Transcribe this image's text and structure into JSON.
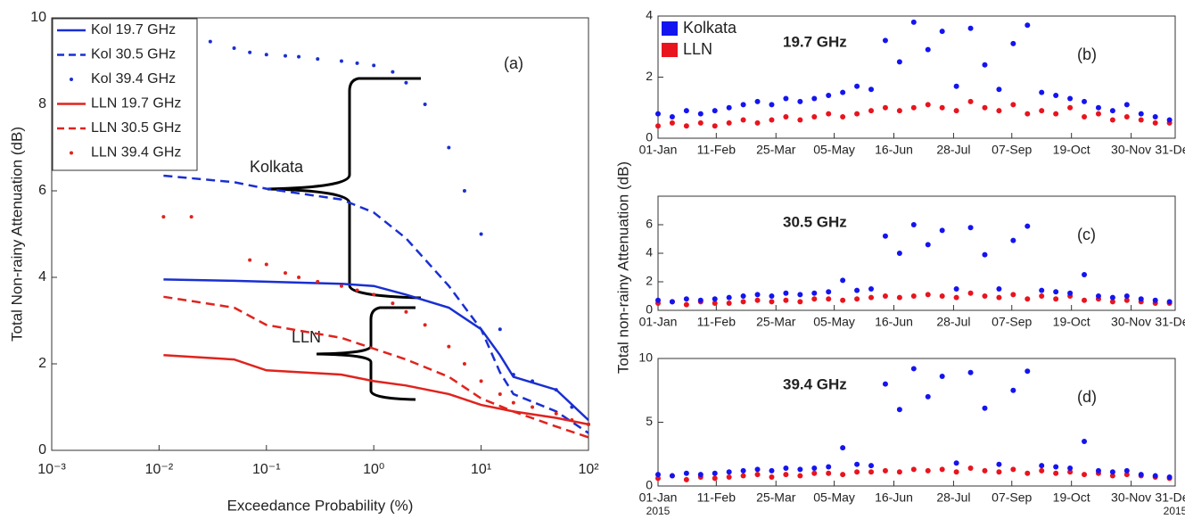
{
  "chart_data": [
    {
      "type": "line",
      "panel_label": "(a)",
      "xlabel": "Exceedance Probability (%)",
      "ylabel": "Total Non-rainy Attenuation (dB)",
      "xscale": "log",
      "xlim": [
        0.001,
        100
      ],
      "xticks": [
        {
          "value": 0.001,
          "label": "10⁻³"
        },
        {
          "value": 0.01,
          "label": "10⁻²"
        },
        {
          "value": 0.1,
          "label": "10⁻¹"
        },
        {
          "value": 1,
          "label": "10⁰"
        },
        {
          "value": 10,
          "label": "10¹"
        },
        {
          "value": 100,
          "label": "10²"
        }
      ],
      "ylim": [
        0,
        10
      ],
      "yticks": [
        0,
        2,
        4,
        6,
        8,
        10
      ],
      "legend": "upper left",
      "annotations": [
        "Kolkata",
        "LLN"
      ],
      "series": [
        {
          "name": "Kol 19.7 GHz",
          "color": "#1a2fd1",
          "style": "solid",
          "x": [
            0.011,
            0.05,
            0.1,
            0.5,
            1,
            2,
            5,
            10,
            15,
            20,
            50,
            100
          ],
          "values": [
            3.95,
            3.92,
            3.9,
            3.85,
            3.8,
            3.6,
            3.3,
            2.8,
            2.2,
            1.7,
            1.4,
            0.7
          ]
        },
        {
          "name": "Kol 30.5 GHz",
          "color": "#1a2fd1",
          "style": "dashed",
          "x": [
            0.011,
            0.05,
            0.1,
            0.5,
            1,
            2,
            5,
            10,
            15,
            20,
            50,
            100
          ],
          "values": [
            6.35,
            6.2,
            6.05,
            5.8,
            5.5,
            4.9,
            3.8,
            2.8,
            1.8,
            1.3,
            0.9,
            0.4
          ]
        },
        {
          "name": "Kol 39.4 GHz",
          "color": "#1a2fd1",
          "style": "dotted",
          "x": [
            0.02,
            0.03,
            0.05,
            0.07,
            0.1,
            0.15,
            0.2,
            0.3,
            0.5,
            0.7,
            1,
            1.5,
            2,
            3,
            5,
            7,
            10,
            15,
            20,
            30,
            50,
            70,
            100
          ],
          "values": [
            9.6,
            9.45,
            9.3,
            9.2,
            9.15,
            9.12,
            9.1,
            9.05,
            9.0,
            8.95,
            8.9,
            8.75,
            8.5,
            8.0,
            7.0,
            6.0,
            5.0,
            2.8,
            1.75,
            1.6,
            1.4,
            1.0,
            0.6
          ]
        },
        {
          "name": "LLN 19.7 GHz",
          "color": "#e0231d",
          "style": "solid",
          "x": [
            0.011,
            0.05,
            0.1,
            0.5,
            1,
            2,
            5,
            10,
            20,
            50,
            100
          ],
          "values": [
            2.2,
            2.1,
            1.85,
            1.75,
            1.6,
            1.5,
            1.3,
            1.05,
            0.9,
            0.75,
            0.6
          ]
        },
        {
          "name": "LLN 30.5 GHz",
          "color": "#e0231d",
          "style": "dashed",
          "x": [
            0.011,
            0.05,
            0.1,
            0.5,
            1,
            2,
            5,
            10,
            20,
            50,
            100
          ],
          "values": [
            3.55,
            3.3,
            2.9,
            2.6,
            2.35,
            2.1,
            1.7,
            1.2,
            0.9,
            0.55,
            0.3
          ]
        },
        {
          "name": "LLN 39.4 GHz",
          "color": "#e0231d",
          "style": "dotted",
          "x": [
            0.011,
            0.02,
            0.07,
            0.1,
            0.15,
            0.2,
            0.3,
            0.5,
            0.7,
            1,
            1.5,
            2,
            3,
            5,
            7,
            10,
            15,
            20,
            30,
            50,
            70,
            100
          ],
          "values": [
            5.4,
            5.4,
            4.4,
            4.3,
            4.1,
            4.0,
            3.9,
            3.8,
            3.7,
            3.6,
            3.4,
            3.2,
            2.9,
            2.4,
            2.0,
            1.6,
            1.3,
            1.1,
            1.0,
            0.85,
            0.7,
            0.6
          ]
        }
      ]
    },
    {
      "type": "scatter",
      "panel_label": "(b)",
      "subtitle": "19.7 GHz",
      "legend": "upper left",
      "xlim": [
        "2015-01-01",
        "2015-12-31"
      ],
      "xticks": [
        {
          "value": "2015-01-01",
          "label": "01-Jan"
        },
        {
          "value": "2015-02-11",
          "label": "11-Feb"
        },
        {
          "value": "2015-03-25",
          "label": "25-Mar"
        },
        {
          "value": "2015-05-05",
          "label": "05-May"
        },
        {
          "value": "2015-06-16",
          "label": "16-Jun"
        },
        {
          "value": "2015-07-28",
          "label": "28-Jul"
        },
        {
          "value": "2015-09-07",
          "label": "07-Sep"
        },
        {
          "value": "2015-10-19",
          "label": "19-Oct"
        },
        {
          "value": "2015-11-30",
          "label": "30-Nov"
        },
        {
          "value": "2015-12-31",
          "label": "31-Dec"
        }
      ],
      "ylim": [
        0,
        4
      ],
      "yticks": [
        0,
        2,
        4
      ],
      "x": [
        "2015-01-01",
        "2015-01-11",
        "2015-01-21",
        "2015-01-31",
        "2015-02-10",
        "2015-02-20",
        "2015-03-02",
        "2015-03-12",
        "2015-03-22",
        "2015-04-01",
        "2015-04-11",
        "2015-04-21",
        "2015-05-01",
        "2015-05-11",
        "2015-05-21",
        "2015-05-31",
        "2015-06-10",
        "2015-06-20",
        "2015-06-30",
        "2015-07-10",
        "2015-07-20",
        "2015-07-30",
        "2015-08-09",
        "2015-08-19",
        "2015-08-29",
        "2015-09-08",
        "2015-09-18",
        "2015-09-28",
        "2015-10-08",
        "2015-10-18",
        "2015-10-28",
        "2015-11-07",
        "2015-11-17",
        "2015-11-27",
        "2015-12-07",
        "2015-12-17",
        "2015-12-27"
      ],
      "series": [
        {
          "name": "Kolkata",
          "color": "#1414f0",
          "values": [
            0.8,
            0.7,
            0.9,
            0.8,
            0.9,
            1.0,
            1.1,
            1.2,
            1.1,
            1.3,
            1.2,
            1.3,
            1.4,
            1.5,
            1.7,
            1.6,
            3.2,
            2.5,
            3.8,
            2.9,
            3.5,
            1.7,
            3.6,
            2.4,
            1.6,
            3.1,
            3.7,
            1.5,
            1.4,
            1.3,
            1.2,
            1.0,
            0.9,
            1.1,
            0.8,
            0.7,
            0.6
          ]
        },
        {
          "name": "LLN",
          "color": "#e8141e",
          "values": [
            0.4,
            0.5,
            0.4,
            0.5,
            0.4,
            0.5,
            0.6,
            0.5,
            0.6,
            0.7,
            0.6,
            0.7,
            0.8,
            0.7,
            0.8,
            0.9,
            1.0,
            0.9,
            1.0,
            1.1,
            1.0,
            0.9,
            1.2,
            1.0,
            0.9,
            1.1,
            0.8,
            0.9,
            0.8,
            1.0,
            0.7,
            0.8,
            0.6,
            0.7,
            0.6,
            0.5,
            0.5
          ]
        }
      ]
    },
    {
      "type": "scatter",
      "panel_label": "(c)",
      "subtitle": "30.5 GHz",
      "ylabel": "Total non-rainy Attenuation (dB)",
      "xlim": [
        "2015-01-01",
        "2015-12-31"
      ],
      "xticks": [
        {
          "value": "2015-01-01",
          "label": "01-Jan"
        },
        {
          "value": "2015-02-11",
          "label": "11-Feb"
        },
        {
          "value": "2015-03-25",
          "label": "25-Mar"
        },
        {
          "value": "2015-05-05",
          "label": "05-May"
        },
        {
          "value": "2015-06-16",
          "label": "16-Jun"
        },
        {
          "value": "2015-07-28",
          "label": "28-Jul"
        },
        {
          "value": "2015-09-07",
          "label": "07-Sep"
        },
        {
          "value": "2015-10-19",
          "label": "19-Oct"
        },
        {
          "value": "2015-11-30",
          "label": "30-Nov"
        },
        {
          "value": "2015-12-31",
          "label": "31-Dec"
        }
      ],
      "ylim": [
        0,
        8
      ],
      "yticks": [
        0,
        2,
        4,
        6
      ],
      "x": [
        "2015-01-01",
        "2015-01-11",
        "2015-01-21",
        "2015-01-31",
        "2015-02-10",
        "2015-02-20",
        "2015-03-02",
        "2015-03-12",
        "2015-03-22",
        "2015-04-01",
        "2015-04-11",
        "2015-04-21",
        "2015-05-01",
        "2015-05-11",
        "2015-05-21",
        "2015-05-31",
        "2015-06-10",
        "2015-06-20",
        "2015-06-30",
        "2015-07-10",
        "2015-07-20",
        "2015-07-30",
        "2015-08-09",
        "2015-08-19",
        "2015-08-29",
        "2015-09-08",
        "2015-09-18",
        "2015-09-28",
        "2015-10-08",
        "2015-10-18",
        "2015-10-28",
        "2015-11-07",
        "2015-11-17",
        "2015-11-27",
        "2015-12-07",
        "2015-12-17",
        "2015-12-27"
      ],
      "series": [
        {
          "name": "Kolkata",
          "color": "#1414f0",
          "values": [
            0.7,
            0.6,
            0.8,
            0.7,
            0.8,
            0.9,
            1.0,
            1.1,
            1.0,
            1.2,
            1.1,
            1.2,
            1.3,
            2.1,
            1.4,
            1.5,
            5.2,
            4.0,
            6.0,
            4.6,
            5.6,
            1.5,
            5.8,
            3.9,
            1.5,
            4.9,
            5.9,
            1.4,
            1.3,
            1.2,
            2.5,
            1.0,
            0.9,
            1.0,
            0.8,
            0.7,
            0.6
          ]
        },
        {
          "name": "LLN",
          "color": "#e8141e",
          "values": [
            0.5,
            0.6,
            0.4,
            0.6,
            0.5,
            0.5,
            0.6,
            0.7,
            0.6,
            0.7,
            0.6,
            0.8,
            0.8,
            0.7,
            0.8,
            0.9,
            1.0,
            0.9,
            1.0,
            1.1,
            1.0,
            0.9,
            1.2,
            1.0,
            0.9,
            1.1,
            0.8,
            1.0,
            0.8,
            1.0,
            0.7,
            0.8,
            0.6,
            0.7,
            0.6,
            0.5,
            0.5
          ]
        }
      ]
    },
    {
      "type": "scatter",
      "panel_label": "(d)",
      "subtitle": "39.4 GHz",
      "x_year_labels": [
        "2015",
        "2015"
      ],
      "xlim": [
        "2015-01-01",
        "2015-12-31"
      ],
      "xticks": [
        {
          "value": "2015-01-01",
          "label": "01-Jan"
        },
        {
          "value": "2015-02-11",
          "label": "11-Feb"
        },
        {
          "value": "2015-03-25",
          "label": "25-Mar"
        },
        {
          "value": "2015-05-05",
          "label": "05-May"
        },
        {
          "value": "2015-06-16",
          "label": "16-Jun"
        },
        {
          "value": "2015-07-28",
          "label": "28-Jul"
        },
        {
          "value": "2015-09-07",
          "label": "07-Sep"
        },
        {
          "value": "2015-10-19",
          "label": "19-Oct"
        },
        {
          "value": "2015-11-30",
          "label": "30-Nov"
        },
        {
          "value": "2015-12-31",
          "label": "31-Dec"
        }
      ],
      "ylim": [
        0,
        10
      ],
      "yticks": [
        0,
        5,
        10
      ],
      "x": [
        "2015-01-01",
        "2015-01-11",
        "2015-01-21",
        "2015-01-31",
        "2015-02-10",
        "2015-02-20",
        "2015-03-02",
        "2015-03-12",
        "2015-03-22",
        "2015-04-01",
        "2015-04-11",
        "2015-04-21",
        "2015-05-01",
        "2015-05-11",
        "2015-05-21",
        "2015-05-31",
        "2015-06-10",
        "2015-06-20",
        "2015-06-30",
        "2015-07-10",
        "2015-07-20",
        "2015-07-30",
        "2015-08-09",
        "2015-08-19",
        "2015-08-29",
        "2015-09-08",
        "2015-09-18",
        "2015-09-28",
        "2015-10-08",
        "2015-10-18",
        "2015-10-28",
        "2015-11-07",
        "2015-11-17",
        "2015-11-27",
        "2015-12-07",
        "2015-12-17",
        "2015-12-27"
      ],
      "series": [
        {
          "name": "Kolkata",
          "color": "#1414f0",
          "values": [
            0.9,
            0.8,
            1.0,
            0.9,
            1.0,
            1.1,
            1.2,
            1.3,
            1.2,
            1.4,
            1.3,
            1.4,
            1.5,
            3.0,
            1.7,
            1.6,
            8.0,
            6.0,
            9.2,
            7.0,
            8.6,
            1.8,
            8.9,
            6.1,
            1.7,
            7.5,
            9.0,
            1.6,
            1.5,
            1.4,
            3.5,
            1.2,
            1.1,
            1.2,
            0.9,
            0.8,
            0.7
          ]
        },
        {
          "name": "LLN",
          "color": "#e8141e",
          "values": [
            0.6,
            0.8,
            0.5,
            0.7,
            0.6,
            0.7,
            0.8,
            0.9,
            0.7,
            0.9,
            0.8,
            1.0,
            1.0,
            0.9,
            1.1,
            1.1,
            1.2,
            1.1,
            1.3,
            1.2,
            1.3,
            1.1,
            1.4,
            1.2,
            1.1,
            1.3,
            1.0,
            1.2,
            1.0,
            1.1,
            0.9,
            1.0,
            0.8,
            0.9,
            0.8,
            0.7,
            0.6
          ]
        }
      ]
    }
  ]
}
